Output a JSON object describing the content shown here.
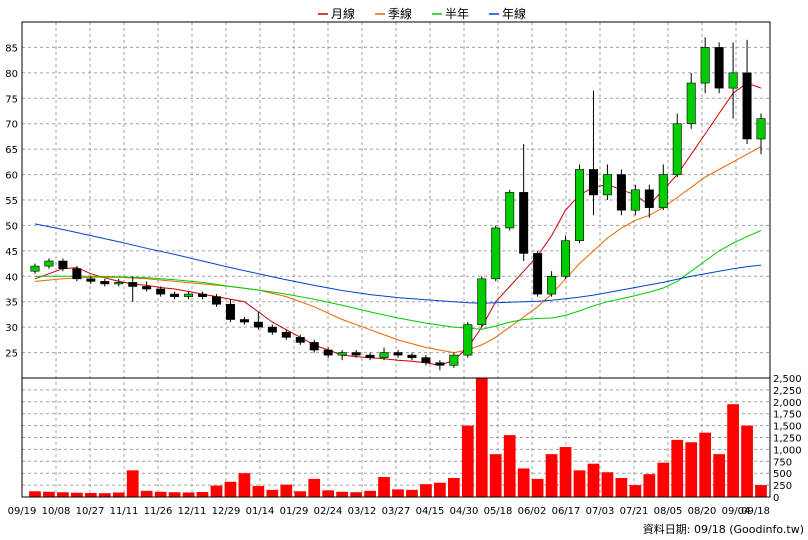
{
  "legend": [
    {
      "name": "月線",
      "color": "#cc0000"
    },
    {
      "name": "季線",
      "color": "#ee6600"
    },
    {
      "name": "半年",
      "color": "#00cc00"
    },
    {
      "name": "年線",
      "color": "#0044cc"
    }
  ],
  "footer": "資料日期: 09/18  (Goodinfo.tw)",
  "chart_data": {
    "type": "candlestick",
    "price_axis": {
      "min": 20,
      "max": 90,
      "ticks": [
        25,
        30,
        35,
        40,
        45,
        50,
        55,
        60,
        65,
        70,
        75,
        80,
        85
      ],
      "position": "left"
    },
    "volume_axis": {
      "min": 0,
      "max": 2500,
      "ticks": [
        "0",
        "250",
        "500",
        "750",
        "1,000",
        "1,250",
        "1,500",
        "1,750",
        "2,000",
        "2,250",
        "2,500"
      ],
      "position": "right"
    },
    "x_ticks": [
      "09/19",
      "10/08",
      "10/27",
      "11/11",
      "11/26",
      "12/11",
      "12/29",
      "01/14",
      "01/29",
      "02/24",
      "03/12",
      "03/27",
      "04/15",
      "04/30",
      "05/18",
      "06/02",
      "06/17",
      "07/03",
      "07/21",
      "08/05",
      "08/20",
      "09/04",
      "09/18"
    ],
    "grid": true,
    "candle_colors": {
      "up": "#00cc00",
      "down": "#000000"
    },
    "volume_color": "#ff0000",
    "moving_averages": [
      {
        "name": "月線",
        "color": "#cc0000",
        "points": [
          [
            0,
            39.5
          ],
          [
            1,
            40.5
          ],
          [
            2,
            41.5
          ],
          [
            3,
            41.7
          ],
          [
            4,
            40.5
          ],
          [
            5,
            39.7
          ],
          [
            6,
            39.0
          ],
          [
            7,
            38.5
          ],
          [
            8,
            38.2
          ],
          [
            9,
            37.8
          ],
          [
            10,
            37.5
          ],
          [
            11,
            37.0
          ],
          [
            12,
            36.5
          ],
          [
            13,
            36.0
          ],
          [
            14,
            35.5
          ],
          [
            15,
            35.0
          ],
          [
            16,
            33.0
          ],
          [
            17,
            31.0
          ],
          [
            18,
            29.5
          ],
          [
            19,
            28.0
          ],
          [
            20,
            26.5
          ],
          [
            21,
            25.5
          ],
          [
            22,
            24.5
          ],
          [
            23,
            24.2
          ],
          [
            24,
            24.0
          ],
          [
            25,
            23.8
          ],
          [
            26,
            23.5
          ],
          [
            27,
            23.3
          ],
          [
            28,
            23.0
          ],
          [
            29,
            22.5
          ],
          [
            30,
            23.5
          ],
          [
            31,
            26.0
          ],
          [
            32,
            30.0
          ],
          [
            33,
            35.0
          ],
          [
            34,
            38.0
          ],
          [
            35,
            41.0
          ],
          [
            36,
            44.0
          ],
          [
            37,
            48.0
          ],
          [
            38,
            53.0
          ],
          [
            39,
            56.0
          ],
          [
            40,
            57.5
          ],
          [
            41,
            58.0
          ],
          [
            42,
            57.0
          ],
          [
            43,
            56.0
          ],
          [
            44,
            54.0
          ],
          [
            45,
            57.0
          ],
          [
            46,
            60.0
          ],
          [
            47,
            64.0
          ],
          [
            48,
            68.0
          ],
          [
            49,
            72.0
          ],
          [
            50,
            76.0
          ],
          [
            51,
            78.0
          ],
          [
            52,
            77.0
          ]
        ]
      },
      {
        "name": "季線",
        "color": "#ee6600",
        "points": [
          [
            0,
            39.0
          ],
          [
            2,
            39.5
          ],
          [
            4,
            39.8
          ],
          [
            6,
            39.8
          ],
          [
            8,
            39.5
          ],
          [
            10,
            39.0
          ],
          [
            12,
            38.5
          ],
          [
            14,
            38.0
          ],
          [
            16,
            37.3
          ],
          [
            18,
            36.0
          ],
          [
            20,
            34.0
          ],
          [
            22,
            31.5
          ],
          [
            24,
            29.5
          ],
          [
            26,
            27.5
          ],
          [
            28,
            26.0
          ],
          [
            30,
            25.0
          ],
          [
            31,
            25.5
          ],
          [
            32,
            26.5
          ],
          [
            33,
            28.0
          ],
          [
            34,
            30.0
          ],
          [
            35,
            32.0
          ],
          [
            36,
            34.0
          ],
          [
            37,
            36.5
          ],
          [
            38,
            39.5
          ],
          [
            39,
            42.5
          ],
          [
            40,
            45.0
          ],
          [
            41,
            47.5
          ],
          [
            42,
            49.5
          ],
          [
            43,
            51.0
          ],
          [
            44,
            52.0
          ],
          [
            45,
            53.5
          ],
          [
            46,
            55.5
          ],
          [
            47,
            57.5
          ],
          [
            48,
            59.5
          ],
          [
            49,
            61.0
          ],
          [
            50,
            62.5
          ],
          [
            51,
            64.0
          ],
          [
            52,
            65.5
          ]
        ]
      },
      {
        "name": "半年",
        "color": "#00cc00",
        "points": [
          [
            0,
            40.0
          ],
          [
            2,
            40.0
          ],
          [
            4,
            40.0
          ],
          [
            6,
            39.9
          ],
          [
            8,
            39.7
          ],
          [
            10,
            39.3
          ],
          [
            12,
            38.8
          ],
          [
            14,
            38.0
          ],
          [
            16,
            37.3
          ],
          [
            18,
            36.5
          ],
          [
            20,
            35.5
          ],
          [
            22,
            34.3
          ],
          [
            24,
            33.0
          ],
          [
            26,
            31.8
          ],
          [
            28,
            30.8
          ],
          [
            30,
            30.0
          ],
          [
            31,
            29.8
          ],
          [
            32,
            29.6
          ],
          [
            33,
            30.2
          ],
          [
            34,
            31.0
          ],
          [
            35,
            31.5
          ],
          [
            36,
            31.7
          ],
          [
            37,
            31.8
          ],
          [
            38,
            32.3
          ],
          [
            39,
            33.2
          ],
          [
            40,
            34.2
          ],
          [
            41,
            35.0
          ],
          [
            42,
            35.6
          ],
          [
            43,
            36.2
          ],
          [
            44,
            36.9
          ],
          [
            45,
            37.7
          ],
          [
            46,
            39.0
          ],
          [
            47,
            41.0
          ],
          [
            48,
            43.0
          ],
          [
            49,
            45.0
          ],
          [
            50,
            46.5
          ],
          [
            51,
            47.8
          ],
          [
            52,
            49.0
          ]
        ]
      },
      {
        "name": "年線",
        "color": "#0044cc",
        "points": [
          [
            0,
            50.3
          ],
          [
            2,
            49.2
          ],
          [
            4,
            48.0
          ],
          [
            6,
            46.8
          ],
          [
            8,
            45.5
          ],
          [
            10,
            44.3
          ],
          [
            12,
            43.0
          ],
          [
            14,
            41.7
          ],
          [
            16,
            40.5
          ],
          [
            18,
            39.3
          ],
          [
            20,
            38.2
          ],
          [
            22,
            37.2
          ],
          [
            24,
            36.4
          ],
          [
            26,
            35.8
          ],
          [
            28,
            35.4
          ],
          [
            30,
            35.0
          ],
          [
            31,
            34.8
          ],
          [
            32,
            34.7
          ],
          [
            33,
            34.8
          ],
          [
            34,
            34.9
          ],
          [
            35,
            35.0
          ],
          [
            36,
            35.1
          ],
          [
            37,
            35.3
          ],
          [
            38,
            35.6
          ],
          [
            39,
            35.9
          ],
          [
            40,
            36.3
          ],
          [
            41,
            36.8
          ],
          [
            42,
            37.3
          ],
          [
            43,
            37.8
          ],
          [
            44,
            38.3
          ],
          [
            45,
            38.8
          ],
          [
            46,
            39.4
          ],
          [
            47,
            40.0
          ],
          [
            48,
            40.5
          ],
          [
            49,
            41.0
          ],
          [
            50,
            41.5
          ],
          [
            51,
            41.9
          ],
          [
            52,
            42.2
          ]
        ]
      }
    ],
    "candles": [
      {
        "o": 41.0,
        "h": 42.5,
        "l": 40.5,
        "c": 42.0
      },
      {
        "o": 42.0,
        "h": 43.5,
        "l": 41.5,
        "c": 43.0
      },
      {
        "o": 43.0,
        "h": 43.5,
        "l": 41.0,
        "c": 41.5
      },
      {
        "o": 41.5,
        "h": 42.0,
        "l": 39.0,
        "c": 39.5
      },
      {
        "o": 39.5,
        "h": 40.0,
        "l": 38.5,
        "c": 39.0
      },
      {
        "o": 39.0,
        "h": 39.5,
        "l": 38.0,
        "c": 38.5
      },
      {
        "o": 38.5,
        "h": 39.5,
        "l": 38.0,
        "c": 38.8
      },
      {
        "o": 38.8,
        "h": 40.0,
        "l": 35.0,
        "c": 38.0
      },
      {
        "o": 38.0,
        "h": 39.0,
        "l": 37.0,
        "c": 37.5
      },
      {
        "o": 37.5,
        "h": 38.0,
        "l": 36.0,
        "c": 36.5
      },
      {
        "o": 36.5,
        "h": 37.0,
        "l": 35.5,
        "c": 36.0
      },
      {
        "o": 36.0,
        "h": 37.0,
        "l": 35.5,
        "c": 36.5
      },
      {
        "o": 36.5,
        "h": 37.0,
        "l": 35.5,
        "c": 36.0
      },
      {
        "o": 36.0,
        "h": 36.5,
        "l": 34.0,
        "c": 34.5
      },
      {
        "o": 34.5,
        "h": 35.5,
        "l": 31.0,
        "c": 31.5
      },
      {
        "o": 31.5,
        "h": 32.0,
        "l": 30.5,
        "c": 31.0
      },
      {
        "o": 31.0,
        "h": 33.0,
        "l": 29.5,
        "c": 30.0
      },
      {
        "o": 30.0,
        "h": 30.5,
        "l": 28.5,
        "c": 29.0
      },
      {
        "o": 29.0,
        "h": 29.5,
        "l": 27.5,
        "c": 28.0
      },
      {
        "o": 28.0,
        "h": 28.5,
        "l": 26.5,
        "c": 27.0
      },
      {
        "o": 27.0,
        "h": 27.5,
        "l": 25.0,
        "c": 25.5
      },
      {
        "o": 25.5,
        "h": 26.0,
        "l": 24.0,
        "c": 24.5
      },
      {
        "o": 24.5,
        "h": 25.5,
        "l": 23.5,
        "c": 25.0
      },
      {
        "o": 25.0,
        "h": 25.5,
        "l": 24.0,
        "c": 24.5
      },
      {
        "o": 24.5,
        "h": 25.0,
        "l": 23.5,
        "c": 24.0
      },
      {
        "o": 24.0,
        "h": 26.0,
        "l": 23.5,
        "c": 25.0
      },
      {
        "o": 25.0,
        "h": 25.5,
        "l": 24.0,
        "c": 24.5
      },
      {
        "o": 24.5,
        "h": 25.0,
        "l": 23.5,
        "c": 24.0
      },
      {
        "o": 24.0,
        "h": 24.5,
        "l": 22.5,
        "c": 23.0
      },
      {
        "o": 23.0,
        "h": 23.5,
        "l": 21.5,
        "c": 22.5
      },
      {
        "o": 22.5,
        "h": 25.0,
        "l": 22.0,
        "c": 24.5
      },
      {
        "o": 24.5,
        "h": 31.0,
        "l": 24.0,
        "c": 30.5
      },
      {
        "o": 30.5,
        "h": 40.0,
        "l": 30.0,
        "c": 39.5
      },
      {
        "o": 39.5,
        "h": 50.0,
        "l": 39.0,
        "c": 49.5
      },
      {
        "o": 49.5,
        "h": 57.0,
        "l": 49.0,
        "c": 56.5
      },
      {
        "o": 56.5,
        "h": 66.0,
        "l": 43.0,
        "c": 44.5
      },
      {
        "o": 44.5,
        "h": 45.0,
        "l": 36.0,
        "c": 36.5
      },
      {
        "o": 36.5,
        "h": 41.0,
        "l": 36.0,
        "c": 40.0
      },
      {
        "o": 40.0,
        "h": 48.0,
        "l": 39.5,
        "c": 47.0
      },
      {
        "o": 47.0,
        "h": 62.0,
        "l": 46.5,
        "c": 61.0
      },
      {
        "o": 61.0,
        "h": 76.5,
        "l": 52.0,
        "c": 56.0
      },
      {
        "o": 56.0,
        "h": 62.0,
        "l": 55.0,
        "c": 60.0
      },
      {
        "o": 60.0,
        "h": 61.0,
        "l": 52.0,
        "c": 53.0
      },
      {
        "o": 53.0,
        "h": 58.0,
        "l": 52.0,
        "c": 57.0
      },
      {
        "o": 57.0,
        "h": 58.0,
        "l": 51.5,
        "c": 53.5
      },
      {
        "o": 53.5,
        "h": 62.0,
        "l": 53.0,
        "c": 60.0
      },
      {
        "o": 60.0,
        "h": 72.0,
        "l": 59.5,
        "c": 70.0
      },
      {
        "o": 70.0,
        "h": 80.0,
        "l": 69.0,
        "c": 78.0
      },
      {
        "o": 78.0,
        "h": 87.0,
        "l": 76.0,
        "c": 85.0
      },
      {
        "o": 85.0,
        "h": 86.0,
        "l": 76.0,
        "c": 77.0
      },
      {
        "o": 77.0,
        "h": 86.0,
        "l": 71.0,
        "c": 80.0
      },
      {
        "o": 80.0,
        "h": 86.5,
        "l": 66.0,
        "c": 67.0
      },
      {
        "o": 67.0,
        "h": 72.0,
        "l": 64.0,
        "c": 71.0
      }
    ],
    "volume": [
      120,
      110,
      100,
      90,
      85,
      80,
      95,
      560,
      130,
      110,
      100,
      95,
      105,
      240,
      320,
      500,
      230,
      150,
      260,
      120,
      380,
      140,
      110,
      100,
      130,
      420,
      160,
      150,
      270,
      300,
      400,
      1500,
      2500,
      900,
      1300,
      600,
      380,
      900,
      1050,
      560,
      700,
      520,
      400,
      250,
      480,
      720,
      1200,
      1150,
      1350,
      900,
      1950,
      1500,
      250
    ]
  }
}
